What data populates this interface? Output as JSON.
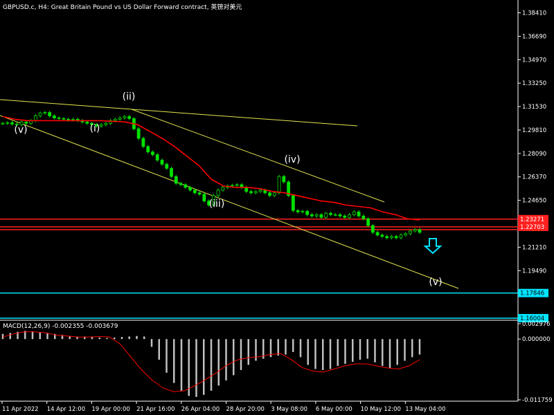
{
  "window": {
    "title": "GBPUSD.c, H4:  Great Britain Pound vs US Dollar Forward contract, 英镑对美元"
  },
  "colors": {
    "background": "#000000",
    "axis": "#ffffff",
    "candle": "#00e000",
    "moving_average": "#ff0000",
    "trendline": "#e6e650",
    "support_lines": "#00e5ff",
    "resistance_lines": "#ff2020",
    "macd_histogram": "#c0c0c0",
    "macd_signal": "#ff0000",
    "arrow": "#00e5ff",
    "wave_label": "#ffffff"
  },
  "chart_data": [
    {
      "type": "candlestick",
      "symbol": "GBPUSD.c",
      "timeframe": "H4",
      "ylim": [
        1.159,
        1.3925
      ],
      "y_ticks": [
        "1.38410",
        "1.36690",
        "1.34970",
        "1.33250",
        "1.31530",
        "1.29810",
        "1.28090",
        "1.26370",
        "1.24650",
        "1.22930",
        "1.21210",
        "1.19490",
        "1.17846",
        "1.16004"
      ],
      "x_ticks": [
        "11 Apr 2022",
        "14 Apr 12:00",
        "19 Apr 00:00",
        "21 Apr 16:00",
        "26 Apr 04:00",
        "28 Apr 20:00",
        "3 May 08:00",
        "6 May 00:00",
        "10 May 12:00",
        "13 May 04:00"
      ],
      "price_series": {
        "name": "GBPUSD close",
        "values": [
          1.303,
          1.3035,
          1.3025,
          1.302,
          1.304,
          1.303,
          1.305,
          1.3085,
          1.3105,
          1.311,
          1.3085,
          1.307,
          1.3065,
          1.306,
          1.3055,
          1.306,
          1.305,
          1.304,
          1.303,
          1.302,
          1.301,
          1.302,
          1.303,
          1.305,
          1.306,
          1.307,
          1.308,
          1.3065,
          1.299,
          1.292,
          1.286,
          1.282,
          1.28,
          1.276,
          1.273,
          1.27,
          1.264,
          1.259,
          1.258,
          1.256,
          1.254,
          1.252,
          1.251,
          1.246,
          1.243,
          1.25,
          1.254,
          1.256,
          1.257,
          1.2575,
          1.258,
          1.256,
          1.253,
          1.252,
          1.253,
          1.254,
          1.252,
          1.25,
          1.252,
          1.264,
          1.26,
          1.25,
          1.239,
          1.238,
          1.2385,
          1.236,
          1.235,
          1.236,
          1.234,
          1.237,
          1.236,
          1.236,
          1.235,
          1.234,
          1.236,
          1.238,
          1.235,
          1.233,
          1.228,
          1.223,
          1.221,
          1.22,
          1.219,
          1.22,
          1.219,
          1.221,
          1.222,
          1.224,
          1.225,
          1.223
        ]
      },
      "moving_average": {
        "name": "MA",
        "values": [
          1.308,
          1.306,
          1.305,
          1.305,
          1.305,
          1.305,
          1.305,
          1.305,
          1.305,
          1.3045,
          1.304,
          1.302,
          1.297,
          1.292,
          1.286,
          1.279,
          1.272,
          1.262,
          1.257,
          1.256,
          1.256,
          1.255,
          1.253,
          1.252,
          1.25,
          1.248,
          1.246,
          1.245,
          1.243,
          1.242,
          1.241,
          1.238,
          1.236,
          1.233,
          1.232
        ]
      },
      "horizontal_lines": [
        {
          "level": 1.23271,
          "label": "1.23271",
          "color": "#ff2020"
        },
        {
          "level": 1.22703,
          "label": "1.22703",
          "color": "#ff2020"
        },
        {
          "level": 1.225,
          "label": "",
          "color": "#ff2020"
        },
        {
          "level": 1.17846,
          "label": "1.17846",
          "color": "#00e5ff"
        },
        {
          "level": 1.16004,
          "label": "1.16004",
          "color": "#00e5ff"
        }
      ],
      "wave_labels": [
        "(v)",
        "(i)",
        "(ii)",
        "(iii)",
        "(iv)",
        "(v)"
      ],
      "arrow": {
        "direction": "down",
        "icon": "down-arrow-icon"
      }
    },
    {
      "type": "bar",
      "indicator_label": "MACD(12,26,9) -0.002355 -0.003679",
      "ylim": [
        -0.011759,
        0.002976
      ],
      "y_ticks": [
        "0.002976",
        "0.000000",
        "-0.011759"
      ],
      "histogram": [
        0.001,
        0.0012,
        0.0014,
        0.0016,
        0.0015,
        0.0013,
        0.0012,
        0.001,
        0.0008,
        0.0006,
        0.0005,
        0.0005,
        0.0004,
        0.0003,
        0.0002,
        0.0003,
        0.0004,
        0.0005,
        0.0006,
        0.0005,
        -0.0015,
        -0.004,
        -0.0065,
        -0.0085,
        -0.01,
        -0.011,
        -0.0112,
        -0.0108,
        -0.01,
        -0.009,
        -0.008,
        -0.007,
        -0.006,
        -0.005,
        -0.0042,
        -0.0038,
        -0.0035,
        -0.0032,
        -0.003,
        -0.0025,
        -0.0035,
        -0.005,
        -0.0058,
        -0.006,
        -0.0058,
        -0.0052,
        -0.0048,
        -0.0044,
        -0.004,
        -0.0038,
        -0.0045,
        -0.0052,
        -0.0056,
        -0.005,
        -0.0042,
        -0.0035,
        -0.003
      ],
      "signal": [
        0.0004,
        0.001,
        0.0014,
        0.0014,
        0.0012,
        0.0008,
        0.0006,
        0.0004,
        0.0004,
        0.0005,
        0.0004,
        -0.001,
        -0.0035,
        -0.006,
        -0.008,
        -0.0095,
        -0.0102,
        -0.01,
        -0.009,
        -0.0078,
        -0.0065,
        -0.005,
        -0.004,
        -0.0036,
        -0.0034,
        -0.003,
        -0.0028,
        -0.004,
        -0.0055,
        -0.0062,
        -0.0064,
        -0.0058,
        -0.0052,
        -0.0048,
        -0.0048,
        -0.0052,
        -0.0056,
        -0.0058,
        -0.0052,
        -0.004
      ]
    }
  ]
}
